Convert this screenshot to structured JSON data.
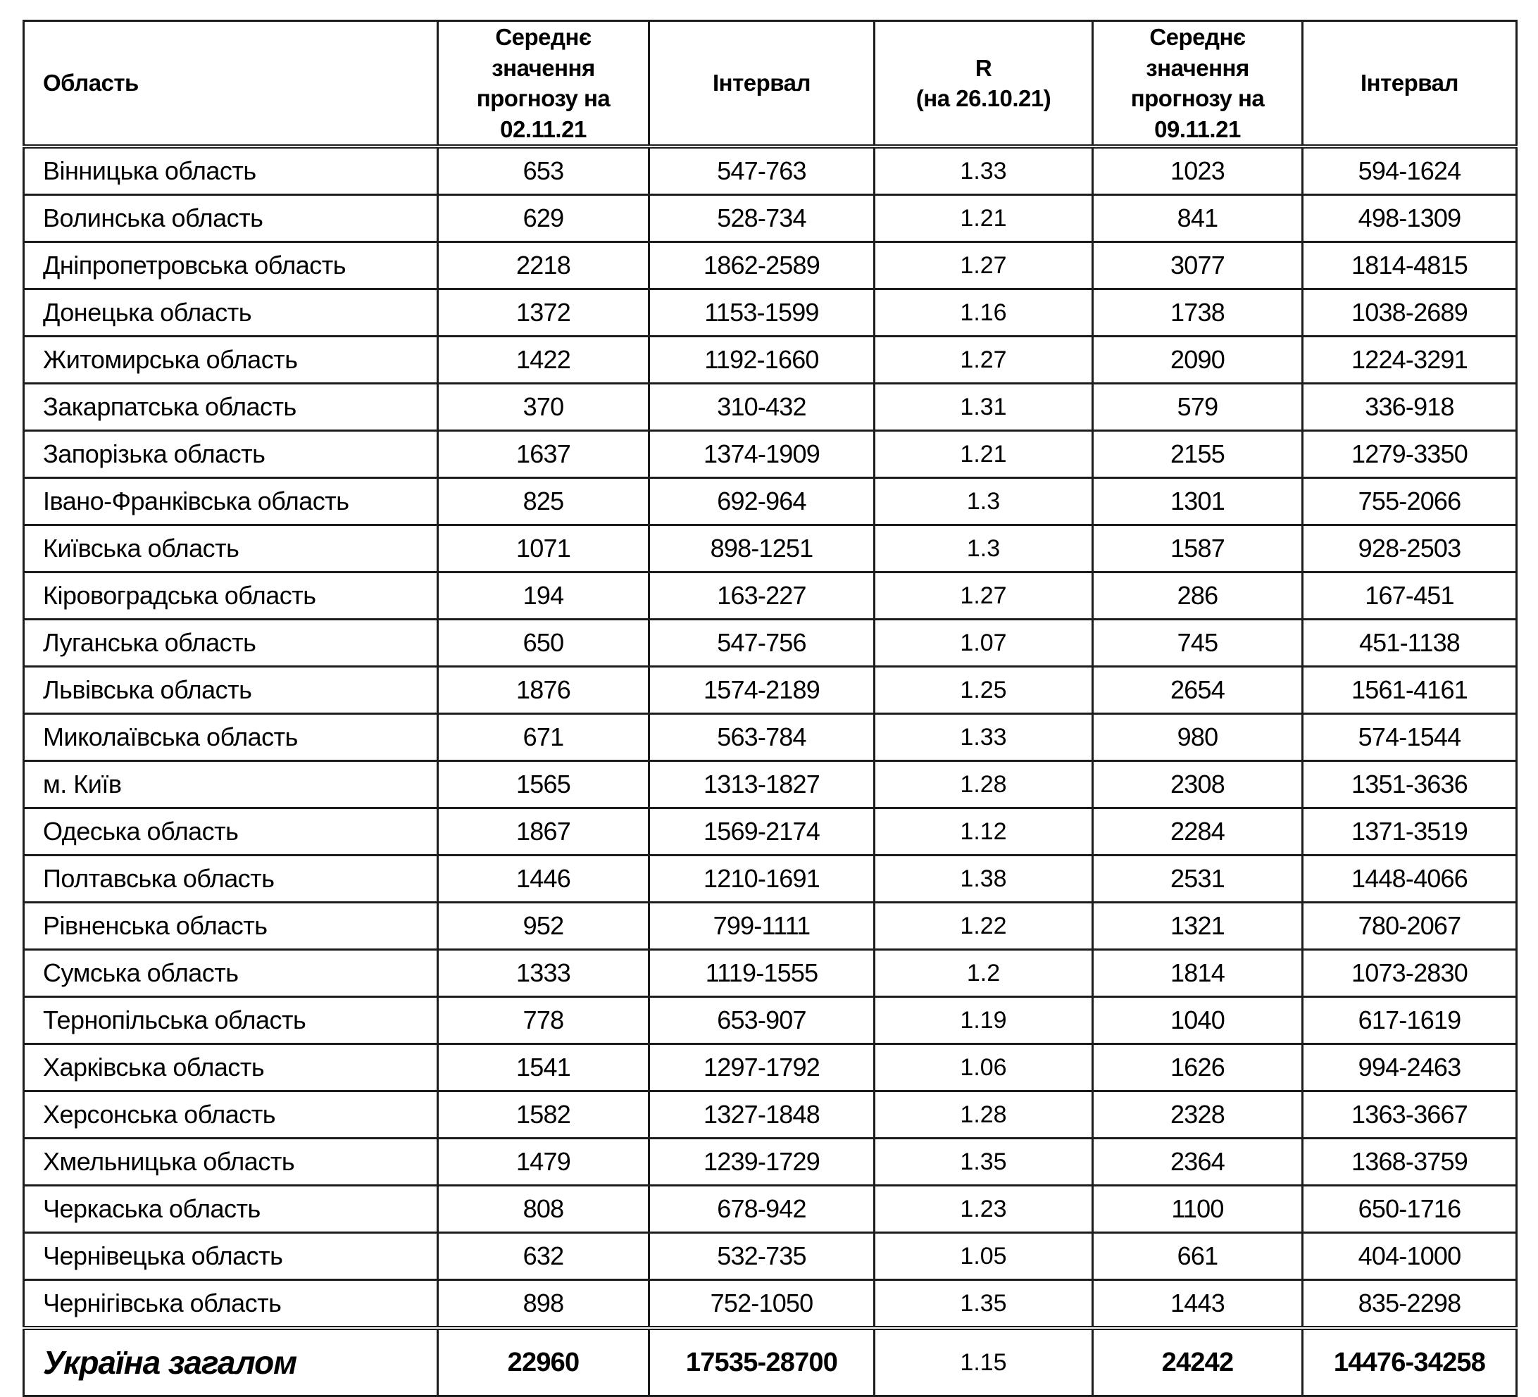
{
  "table": {
    "headers": {
      "region": "Область",
      "mean1": "Середнє\nзначення\nпрогнозу на\n02.11.21",
      "interval1": "Інтервал",
      "r": "R\n(на 26.10.21)",
      "mean2": "Середнє\nзначення\nпрогнозу на\n09.11.21",
      "interval2": "Інтервал"
    },
    "rows": [
      {
        "region": "Вінницька область",
        "mean1": "653",
        "interval1": "547-763",
        "r": "1.33",
        "mean2": "1023",
        "interval2": "594-1624"
      },
      {
        "region": "Волинська область",
        "mean1": "629",
        "interval1": "528-734",
        "r": "1.21",
        "mean2": "841",
        "interval2": "498-1309"
      },
      {
        "region": "Дніпропетровська область",
        "mean1": "2218",
        "interval1": "1862-2589",
        "r": "1.27",
        "mean2": "3077",
        "interval2": "1814-4815"
      },
      {
        "region": "Донецька область",
        "mean1": "1372",
        "interval1": "1153-1599",
        "r": "1.16",
        "mean2": "1738",
        "interval2": "1038-2689"
      },
      {
        "region": "Житомирська область",
        "mean1": "1422",
        "interval1": "1192-1660",
        "r": "1.27",
        "mean2": "2090",
        "interval2": "1224-3291"
      },
      {
        "region": "Закарпатська область",
        "mean1": "370",
        "interval1": "310-432",
        "r": "1.31",
        "mean2": "579",
        "interval2": "336-918"
      },
      {
        "region": "Запорізька область",
        "mean1": "1637",
        "interval1": "1374-1909",
        "r": "1.21",
        "mean2": "2155",
        "interval2": "1279-3350"
      },
      {
        "region": "Івано-Франківська область",
        "mean1": "825",
        "interval1": "692-964",
        "r": "1.3",
        "mean2": "1301",
        "interval2": "755-2066"
      },
      {
        "region": "Київська область",
        "mean1": "1071",
        "interval1": "898-1251",
        "r": "1.3",
        "mean2": "1587",
        "interval2": "928-2503"
      },
      {
        "region": "Кіровоградська область",
        "mean1": "194",
        "interval1": "163-227",
        "r": "1.27",
        "mean2": "286",
        "interval2": "167-451"
      },
      {
        "region": "Луганська область",
        "mean1": "650",
        "interval1": "547-756",
        "r": "1.07",
        "mean2": "745",
        "interval2": "451-1138"
      },
      {
        "region": "Львівська область",
        "mean1": "1876",
        "interval1": "1574-2189",
        "r": "1.25",
        "mean2": "2654",
        "interval2": "1561-4161"
      },
      {
        "region": "Миколаївська область",
        "mean1": "671",
        "interval1": "563-784",
        "r": "1.33",
        "mean2": "980",
        "interval2": "574-1544"
      },
      {
        "region": "м. Київ",
        "mean1": "1565",
        "interval1": "1313-1827",
        "r": "1.28",
        "mean2": "2308",
        "interval2": "1351-3636"
      },
      {
        "region": "Одеська область",
        "mean1": "1867",
        "interval1": "1569-2174",
        "r": "1.12",
        "mean2": "2284",
        "interval2": "1371-3519"
      },
      {
        "region": "Полтавська область",
        "mean1": "1446",
        "interval1": "1210-1691",
        "r": "1.38",
        "mean2": "2531",
        "interval2": "1448-4066"
      },
      {
        "region": "Рівненська область",
        "mean1": "952",
        "interval1": "799-1111",
        "r": "1.22",
        "mean2": "1321",
        "interval2": "780-2067"
      },
      {
        "region": "Сумська область",
        "mean1": "1333",
        "interval1": "1119-1555",
        "r": "1.2",
        "mean2": "1814",
        "interval2": "1073-2830"
      },
      {
        "region": "Тернопільська область",
        "mean1": "778",
        "interval1": "653-907",
        "r": "1.19",
        "mean2": "1040",
        "interval2": "617-1619"
      },
      {
        "region": "Харківська область",
        "mean1": "1541",
        "interval1": "1297-1792",
        "r": "1.06",
        "mean2": "1626",
        "interval2": "994-2463"
      },
      {
        "region": "Херсонська область",
        "mean1": "1582",
        "interval1": "1327-1848",
        "r": "1.28",
        "mean2": "2328",
        "interval2": "1363-3667"
      },
      {
        "region": "Хмельницька область",
        "mean1": "1479",
        "interval1": "1239-1729",
        "r": "1.35",
        "mean2": "2364",
        "interval2": "1368-3759"
      },
      {
        "region": "Черкаська область",
        "mean1": "808",
        "interval1": "678-942",
        "r": "1.23",
        "mean2": "1100",
        "interval2": "650-1716"
      },
      {
        "region": "Чернівецька область",
        "mean1": "632",
        "interval1": "532-735",
        "r": "1.05",
        "mean2": "661",
        "interval2": "404-1000"
      },
      {
        "region": "Чернігівська область",
        "mean1": "898",
        "interval1": "752-1050",
        "r": "1.35",
        "mean2": "1443",
        "interval2": "835-2298"
      }
    ],
    "total": {
      "region": "Україна загалом",
      "mean1": "22960",
      "interval1": "17535-28700",
      "r": "1.15",
      "mean2": "24242",
      "interval2": "14476-34258"
    }
  }
}
